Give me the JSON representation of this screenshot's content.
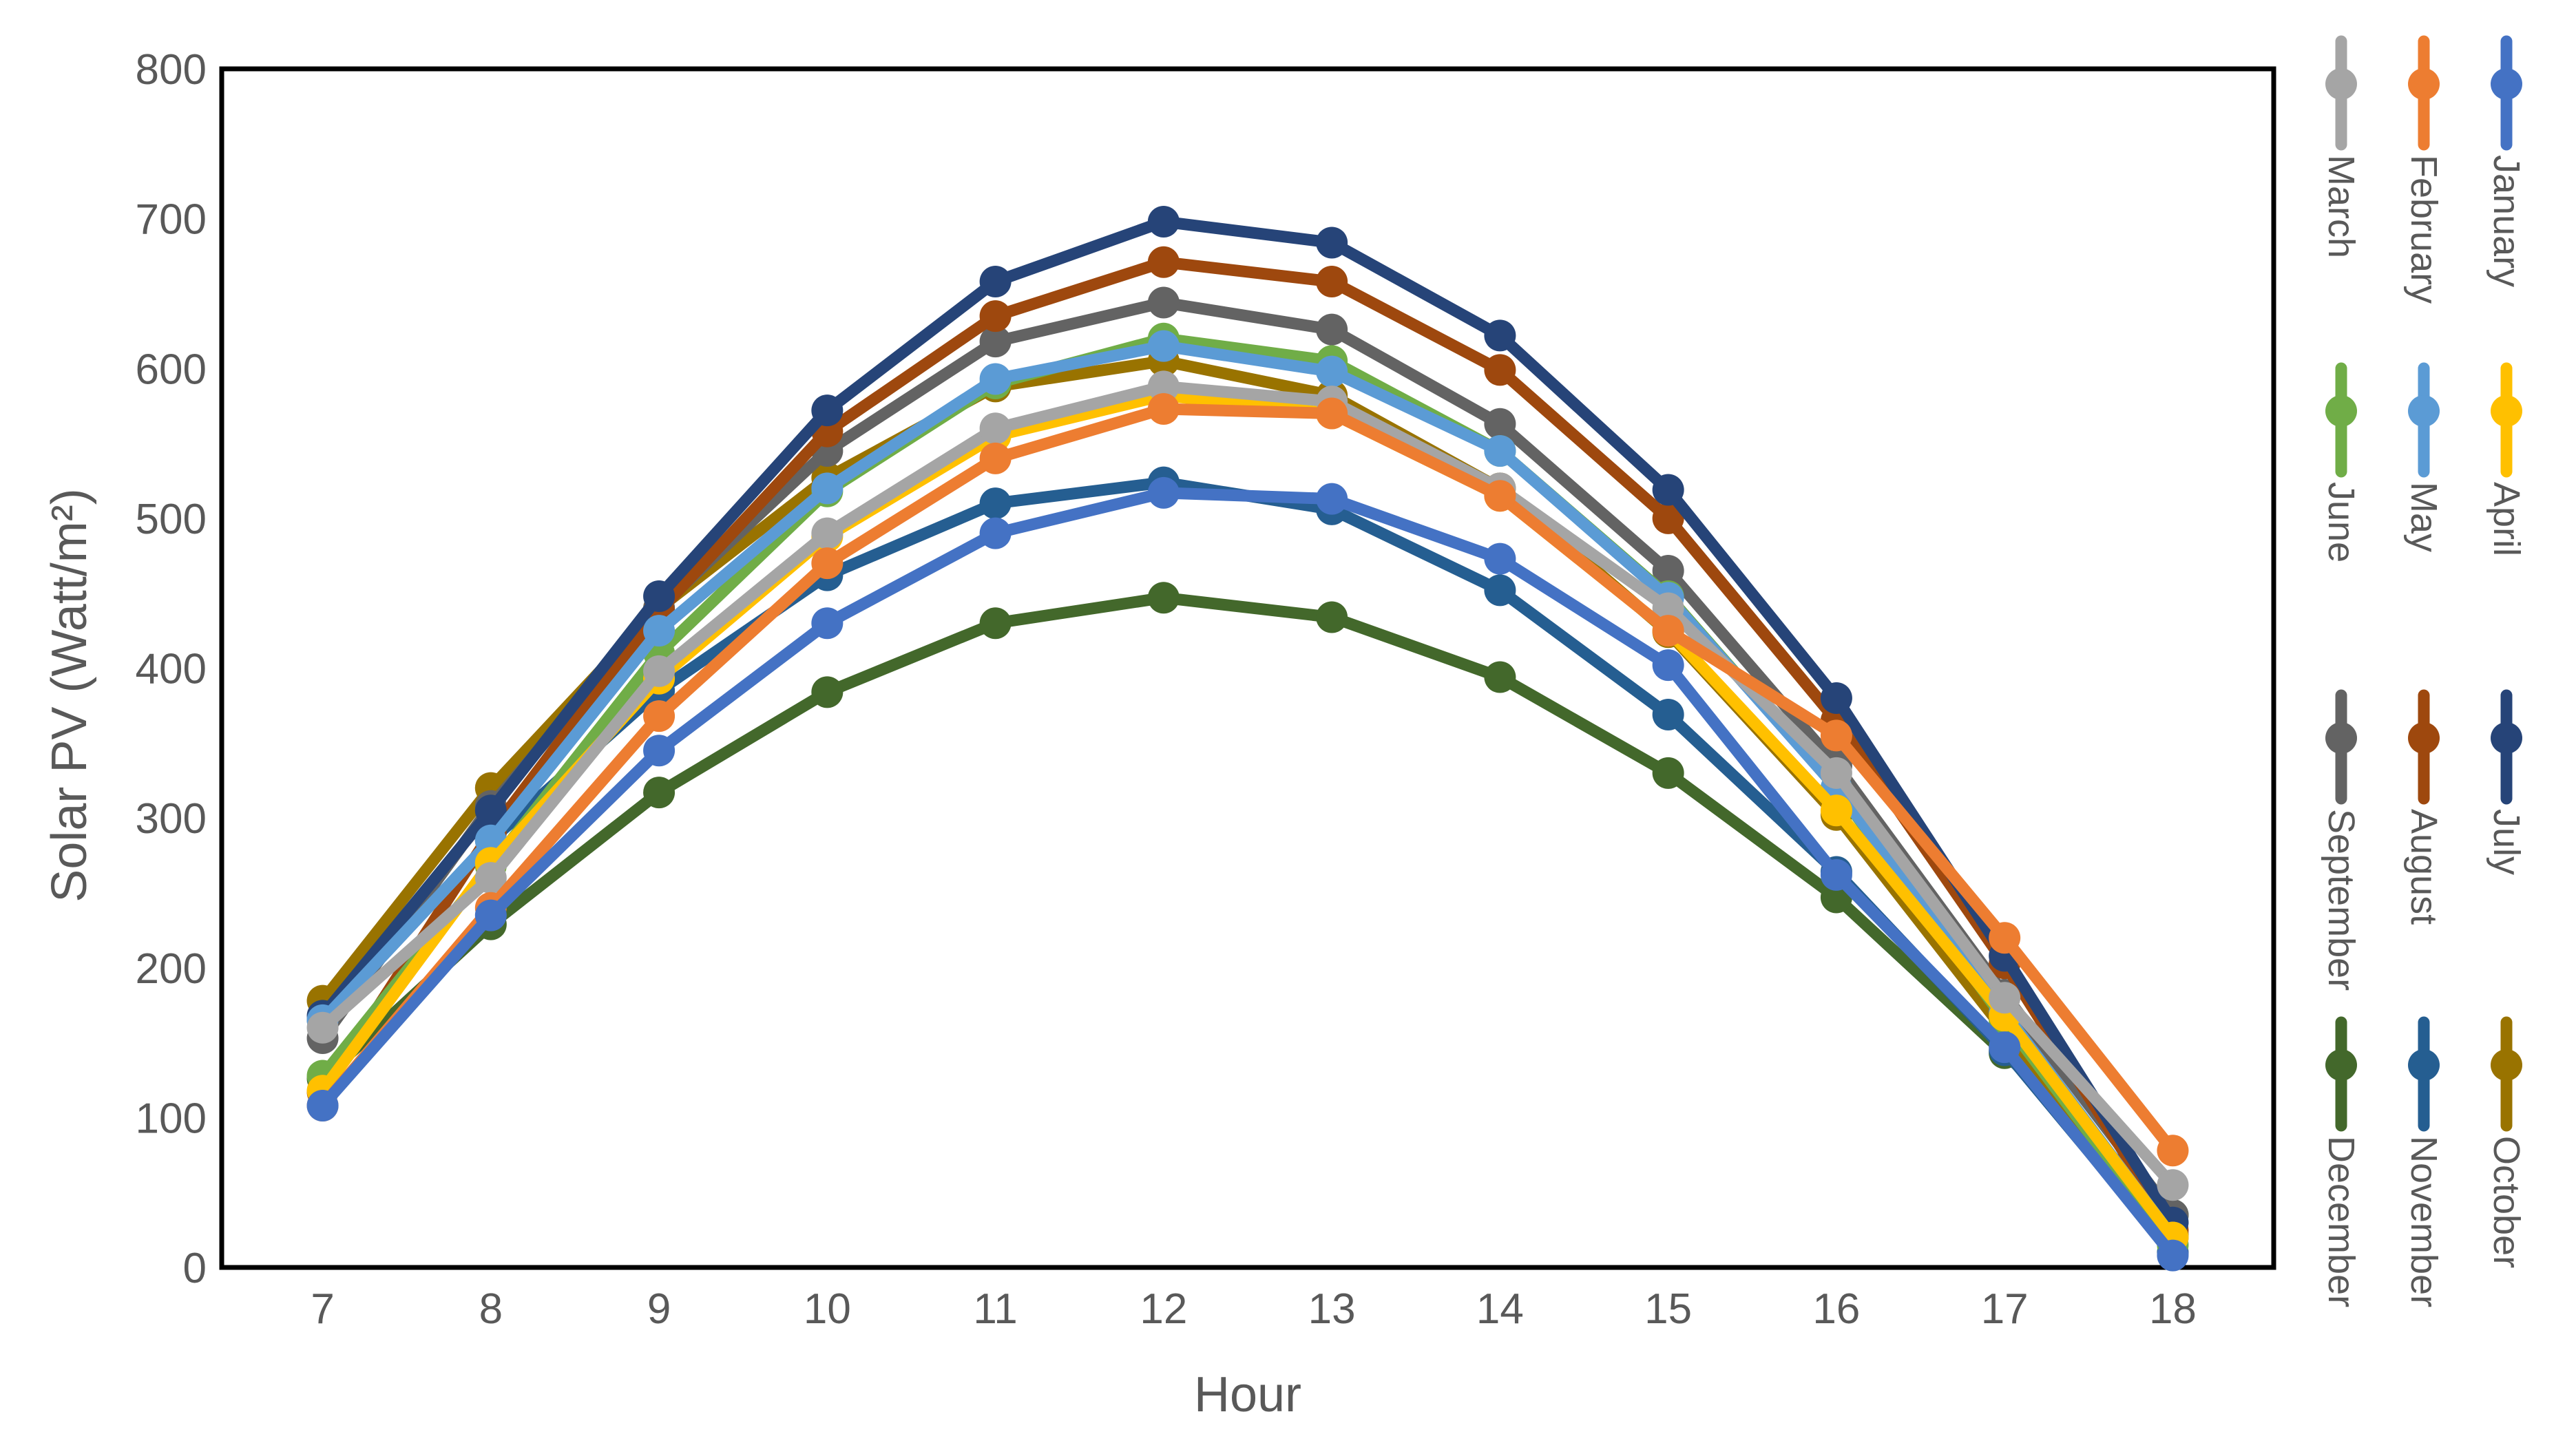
{
  "chart_data": {
    "type": "line",
    "title": "",
    "xlabel": "Hour",
    "ylabel": "Solar PV (Watt/m²)",
    "x": [
      7,
      8,
      9,
      10,
      11,
      12,
      13,
      14,
      15,
      16,
      17,
      18
    ],
    "xlim": [
      6.4,
      18.6
    ],
    "ylim": [
      0,
      800
    ],
    "yticks": [
      0,
      100,
      200,
      300,
      400,
      500,
      600,
      700,
      800
    ],
    "grid": false,
    "legend_position": "right",
    "series": [
      {
        "name": "January",
        "color": "#4472C4",
        "values": [
          108,
          235,
          345,
          430,
          490,
          517,
          513,
          473,
          402,
          262,
          147,
          8
        ]
      },
      {
        "name": "February",
        "color": "#ED7D31",
        "values": [
          108,
          240,
          368,
          470,
          540,
          573,
          570,
          515,
          425,
          355,
          220,
          78
        ]
      },
      {
        "name": "March",
        "color": "#A5A5A5",
        "values": [
          160,
          260,
          398,
          490,
          560,
          588,
          578,
          520,
          440,
          330,
          180,
          55
        ]
      },
      {
        "name": "April",
        "color": "#FFC000",
        "values": [
          118,
          270,
          393,
          488,
          555,
          582,
          570,
          515,
          425,
          305,
          168,
          20
        ]
      },
      {
        "name": "May",
        "color": "#5B9BD5",
        "values": [
          165,
          285,
          425,
          520,
          593,
          615,
          598,
          545,
          447,
          320,
          170,
          20
        ]
      },
      {
        "name": "June",
        "color": "#70AD47",
        "values": [
          128,
          268,
          410,
          518,
          590,
          620,
          605,
          545,
          448,
          320,
          165,
          15
        ]
      },
      {
        "name": "July",
        "color": "#264478",
        "values": [
          168,
          305,
          448,
          572,
          658,
          698,
          684,
          622,
          519,
          380,
          208,
          30
        ]
      },
      {
        "name": "August",
        "color": "#9E480E",
        "values": [
          117,
          290,
          438,
          558,
          635,
          671,
          658,
          599,
          500,
          365,
          203,
          25
        ]
      },
      {
        "name": "September",
        "color": "#636363",
        "values": [
          153,
          308,
          440,
          545,
          618,
          644,
          626,
          563,
          465,
          335,
          182,
          35
        ]
      },
      {
        "name": "October",
        "color": "#997300",
        "values": [
          178,
          320,
          440,
          527,
          588,
          605,
          582,
          520,
          424,
          302,
          158,
          22
        ]
      },
      {
        "name": "November",
        "color": "#255E91",
        "values": [
          165,
          285,
          385,
          462,
          510,
          524,
          506,
          452,
          369,
          264,
          145,
          10
        ]
      },
      {
        "name": "December",
        "color": "#43682B",
        "values": [
          126,
          229,
          317,
          384,
          430,
          447,
          434,
          394,
          330,
          247,
          143,
          35
        ]
      }
    ]
  }
}
